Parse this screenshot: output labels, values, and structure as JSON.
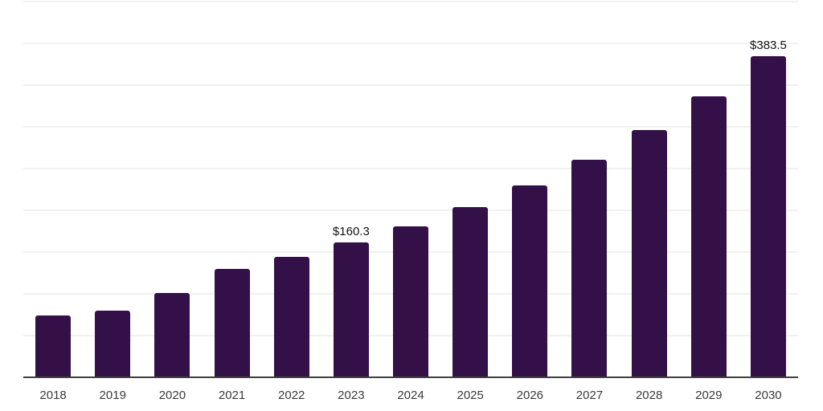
{
  "chart_data": {
    "type": "bar",
    "title": "",
    "xlabel": "",
    "ylabel": "",
    "legend_position": "none",
    "grid": true,
    "y_axis_labels_visible": false,
    "ylim": [
      0,
      450
    ],
    "gridline_step": 50,
    "categories": [
      "2018",
      "2019",
      "2020",
      "2021",
      "2022",
      "2023",
      "2024",
      "2025",
      "2026",
      "2027",
      "2028",
      "2029",
      "2030"
    ],
    "values": [
      73,
      79,
      100,
      129,
      143,
      160.3,
      180,
      203,
      229,
      260,
      295,
      336,
      383.5
    ],
    "annotations": [
      {
        "category": "2023",
        "text": "$160.3"
      },
      {
        "category": "2030",
        "text": "$383.5"
      }
    ],
    "colors": {
      "bar": "#331148",
      "axis": "#3f3f3f",
      "gridline": "#f1f1f1",
      "x_label": "#3a3a3a",
      "value_label": "#111111",
      "background": "#ffffff"
    }
  }
}
